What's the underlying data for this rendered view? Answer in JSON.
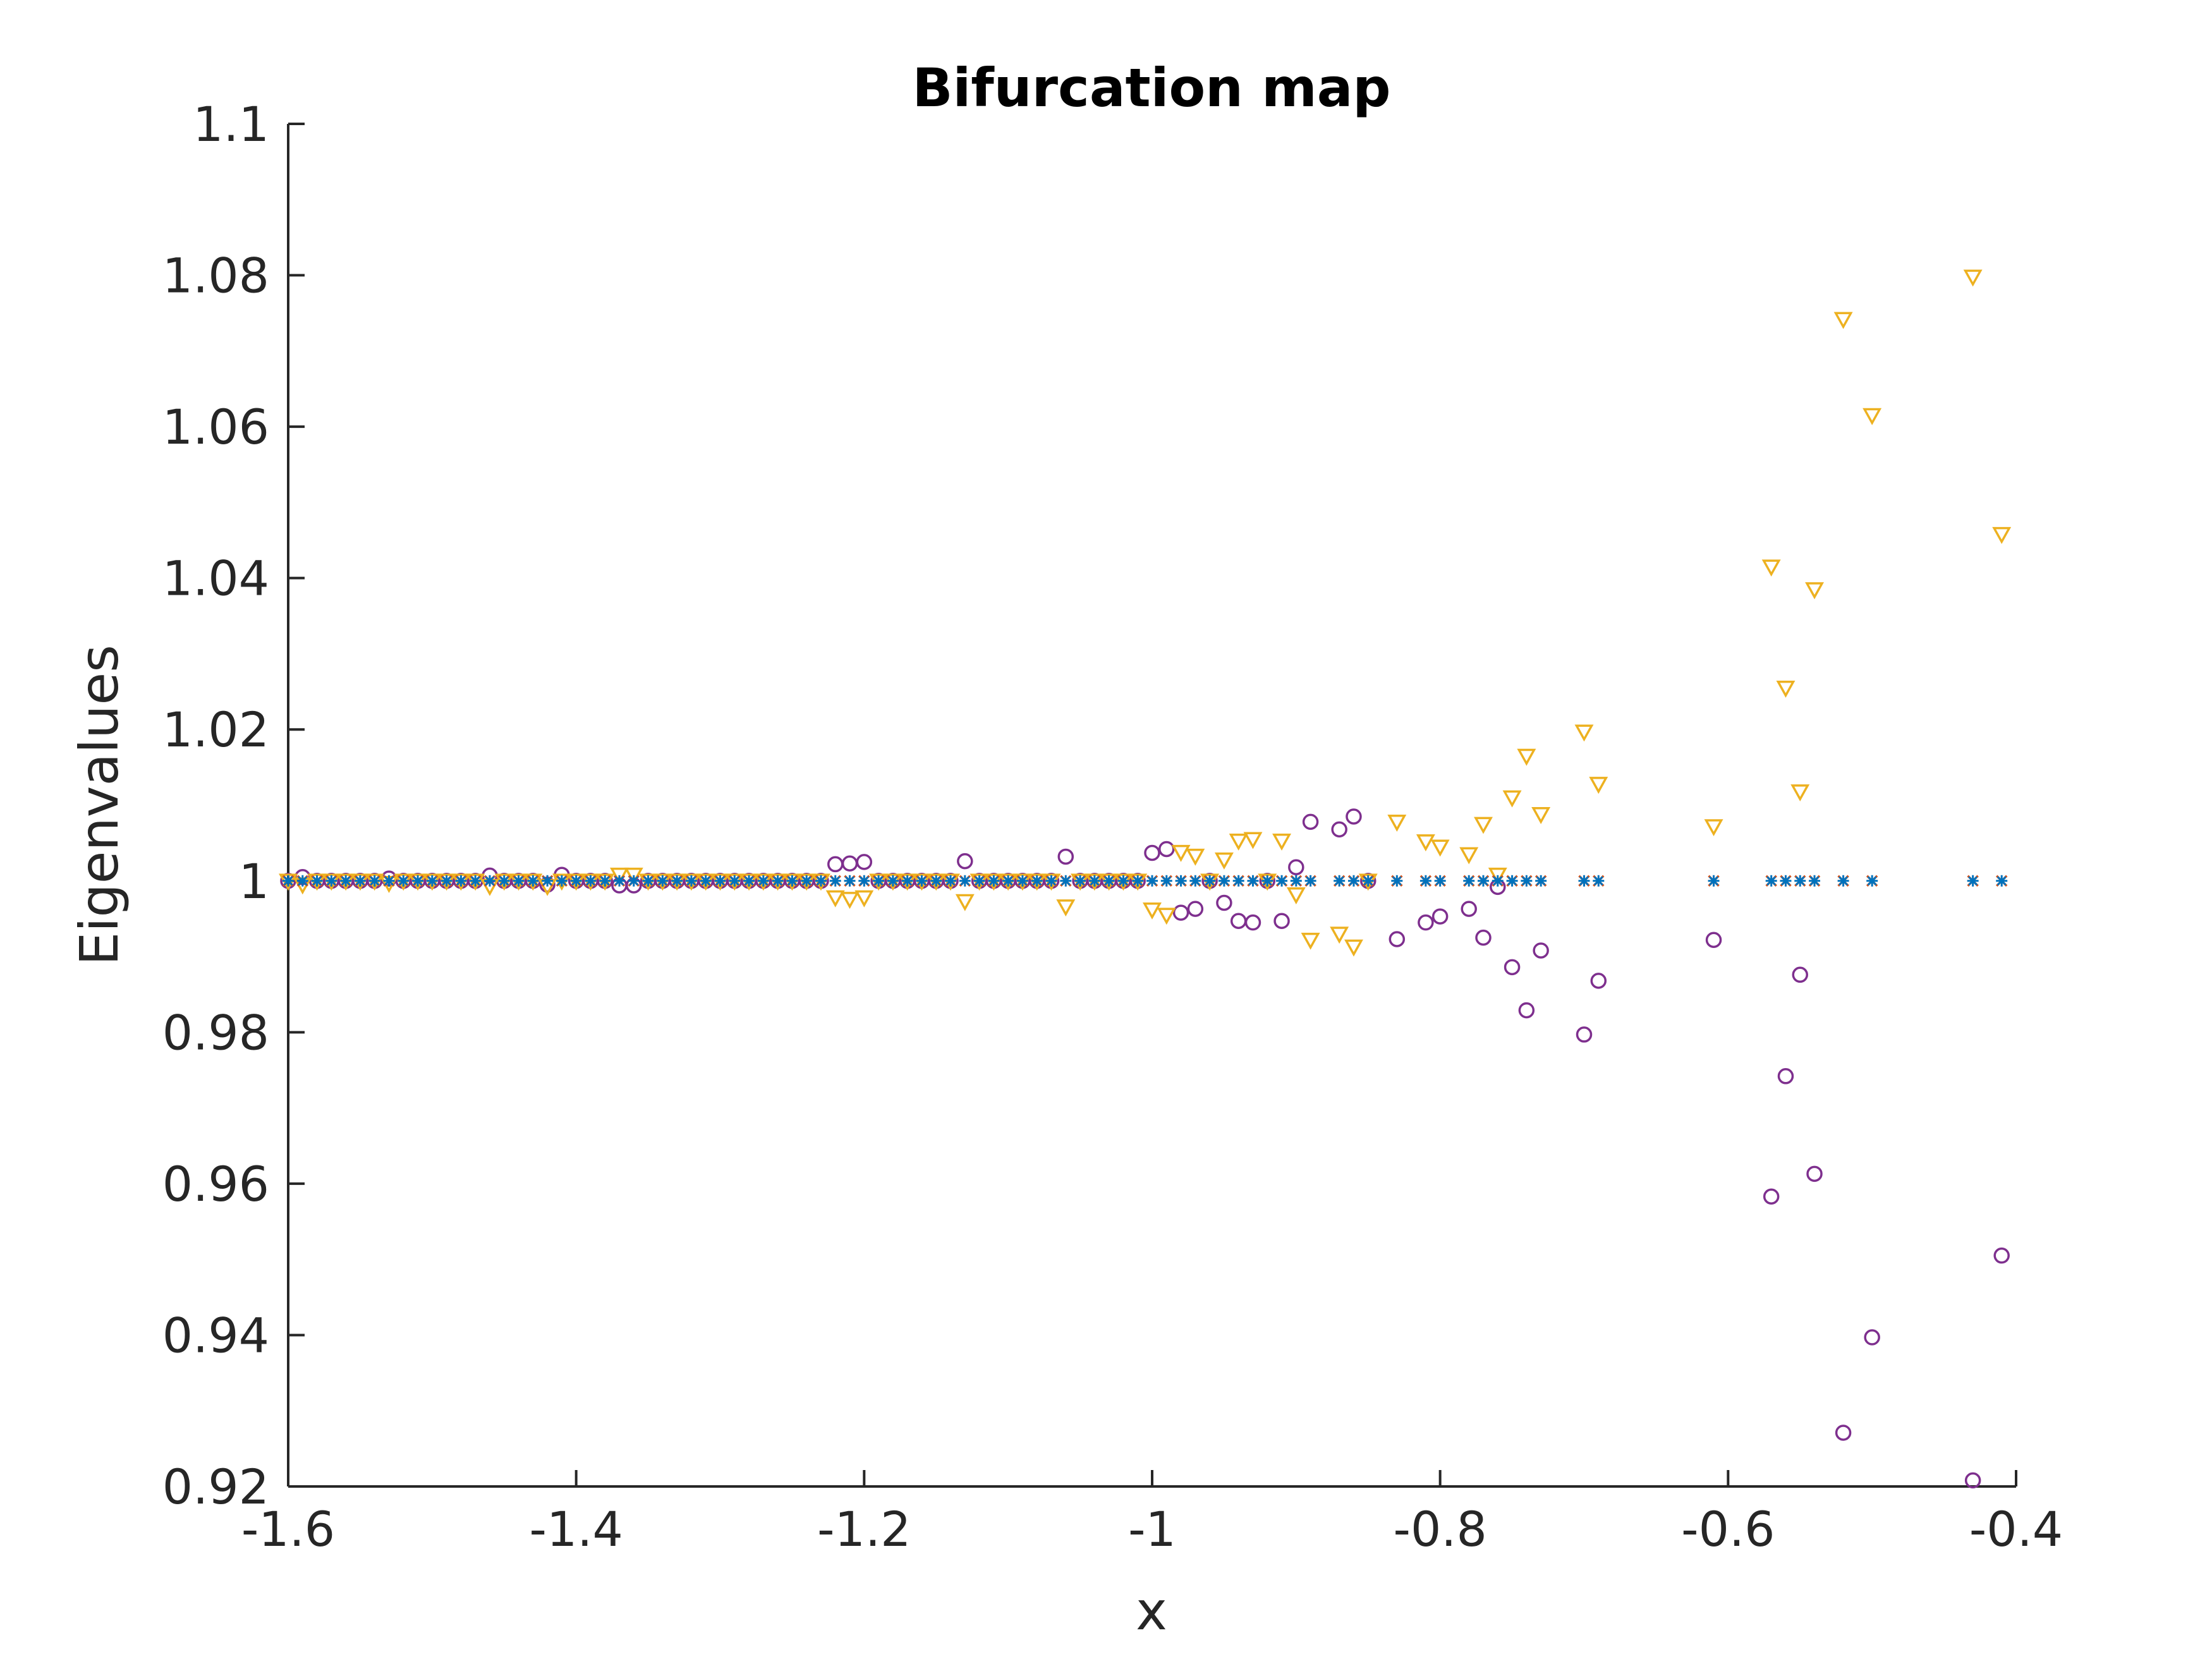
{
  "chart_data": {
    "type": "scatter",
    "title": "Bifurcation map",
    "xlabel": "x",
    "ylabel": "Eigenvalues",
    "xlim": [
      -1.6,
      -0.4
    ],
    "ylim": [
      0.92,
      1.1
    ],
    "xticks": [
      "-1.6",
      "-1.4",
      "-1.2",
      "-1",
      "-0.8",
      "-0.6",
      "-0.4"
    ],
    "yticks": [
      "0.92",
      "0.94",
      "0.96",
      "0.98",
      "1",
      "1.02",
      "1.04",
      "1.06",
      "1.08",
      "1.1"
    ],
    "grid": false,
    "legend": "none",
    "series": [
      {
        "marker": "asterisk",
        "color": "#0072BD",
        "x": [
          -1.6,
          -1.59,
          -1.58,
          -1.57,
          -1.56,
          -1.55,
          -1.54,
          -1.53,
          -1.52,
          -1.51,
          -1.5,
          -1.49,
          -1.48,
          -1.47,
          -1.46,
          -1.45,
          -1.44,
          -1.43,
          -1.42,
          -1.41,
          -1.4,
          -1.39,
          -1.38,
          -1.37,
          -1.36,
          -1.35,
          -1.34,
          -1.33,
          -1.32,
          -1.31,
          -1.3,
          -1.29,
          -1.28,
          -1.27,
          -1.26,
          -1.25,
          -1.24,
          -1.23,
          -1.22,
          -1.21,
          -1.2,
          -1.19,
          -1.18,
          -1.17,
          -1.16,
          -1.15,
          -1.14,
          -1.13,
          -1.12,
          -1.11,
          -1.1,
          -1.09,
          -1.08,
          -1.07,
          -1.06,
          -1.05,
          -1.04,
          -1.03,
          -1.02,
          -1.01,
          -1.0,
          -0.99,
          -0.98,
          -0.97,
          -0.96,
          -0.95,
          -0.94,
          -0.93,
          -0.92,
          -0.91,
          -0.9,
          -0.89,
          -0.87,
          -0.86,
          -0.85,
          -0.83,
          -0.81,
          -0.8,
          -0.78,
          -0.77,
          -0.76,
          -0.75,
          -0.74,
          -0.73,
          -0.7,
          -0.69,
          -0.61,
          -0.57,
          -0.56,
          -0.55,
          -0.54,
          -0.52,
          -0.5,
          -0.43,
          -0.41
        ],
        "y": [
          1.0,
          1.0,
          1.0,
          1.0,
          1.0,
          1.0,
          1.0,
          1.0,
          1.0,
          1.0,
          1.0,
          1.0,
          1.0,
          1.0,
          1.0,
          1.0,
          1.0,
          1.0,
          1.0,
          1.0,
          1.0,
          1.0,
          1.0,
          1.0,
          1.0,
          1.0,
          1.0,
          1.0,
          1.0,
          1.0,
          1.0,
          1.0,
          1.0,
          1.0,
          1.0,
          1.0,
          1.0,
          1.0,
          1.0,
          1.0,
          1.0,
          1.0,
          1.0,
          1.0,
          1.0,
          1.0,
          1.0,
          1.0,
          1.0,
          1.0,
          1.0,
          1.0,
          1.0,
          1.0,
          1.0,
          1.0,
          1.0,
          1.0,
          1.0,
          1.0,
          1.0,
          1.0,
          1.0,
          1.0,
          1.0,
          1.0,
          1.0,
          1.0,
          1.0,
          1.0,
          1.0,
          1.0,
          1.0,
          1.0,
          1.0,
          1.0,
          1.0,
          1.0,
          1.0,
          1.0,
          1.0,
          1.0,
          1.0,
          1.0,
          1.0,
          1.0,
          1.0,
          1.0,
          1.0,
          1.0,
          1.0,
          1.0,
          1.0,
          1.0,
          1.0
        ]
      },
      {
        "marker": "x",
        "color": "#D95319",
        "x": [
          -1.6,
          -1.59,
          -1.58,
          -1.57,
          -1.56,
          -1.55,
          -1.54,
          -1.53,
          -1.52,
          -1.51,
          -1.5,
          -1.49,
          -1.48,
          -1.47,
          -1.46,
          -1.45,
          -1.44,
          -1.43,
          -1.42,
          -1.41,
          -1.4,
          -1.39,
          -1.38,
          -1.37,
          -1.36,
          -1.35,
          -1.34,
          -1.33,
          -1.32,
          -1.31,
          -1.3,
          -1.29,
          -1.28,
          -1.27,
          -1.26,
          -1.25,
          -1.24,
          -1.23,
          -1.22,
          -1.21,
          -1.2,
          -1.19,
          -1.18,
          -1.17,
          -1.16,
          -1.15,
          -1.14,
          -1.13,
          -1.12,
          -1.11,
          -1.1,
          -1.09,
          -1.08,
          -1.07,
          -1.06,
          -1.05,
          -1.04,
          -1.03,
          -1.02,
          -1.01,
          -1.0,
          -0.99,
          -0.98,
          -0.97,
          -0.96,
          -0.95,
          -0.94,
          -0.93,
          -0.92,
          -0.91,
          -0.9,
          -0.89,
          -0.87,
          -0.86,
          -0.85,
          -0.83,
          -0.81,
          -0.8,
          -0.78,
          -0.77,
          -0.76,
          -0.75,
          -0.74,
          -0.73,
          -0.7,
          -0.69,
          -0.61,
          -0.57,
          -0.56,
          -0.55,
          -0.54,
          -0.52,
          -0.5,
          -0.43,
          -0.41
        ],
        "y": [
          1.0,
          1.0,
          1.0,
          1.0,
          1.0,
          1.0,
          1.0,
          1.0,
          1.0,
          1.0,
          1.0,
          1.0,
          1.0,
          1.0,
          1.0,
          1.0,
          1.0,
          1.0,
          1.0,
          1.0,
          1.0,
          1.0,
          1.0,
          1.0,
          1.0,
          1.0,
          1.0,
          1.0,
          1.0,
          1.0,
          1.0,
          1.0,
          1.0,
          1.0,
          1.0,
          1.0,
          1.0,
          1.0,
          1.0,
          1.0,
          1.0,
          1.0,
          1.0,
          1.0,
          1.0,
          1.0,
          1.0,
          1.0,
          1.0,
          1.0,
          1.0,
          1.0,
          1.0,
          1.0,
          1.0,
          1.0,
          1.0,
          1.0,
          1.0,
          1.0,
          1.0,
          1.0,
          1.0,
          1.0,
          1.0,
          1.0,
          1.0,
          1.0,
          1.0,
          1.0,
          1.0,
          1.0,
          1.0,
          1.0,
          1.0,
          1.0,
          1.0,
          1.0,
          1.0,
          1.0,
          1.0,
          1.0,
          1.0,
          1.0,
          1.0,
          1.0,
          1.0,
          1.0,
          1.0,
          1.0,
          1.0,
          1.0,
          1.0,
          1.0,
          1.0
        ]
      },
      {
        "marker": "triangle-down",
        "color": "#EDB120",
        "x": [
          -1.6,
          -1.59,
          -1.58,
          -1.57,
          -1.56,
          -1.55,
          -1.54,
          -1.53,
          -1.52,
          -1.51,
          -1.5,
          -1.49,
          -1.48,
          -1.47,
          -1.46,
          -1.45,
          -1.44,
          -1.43,
          -1.42,
          -1.41,
          -1.4,
          -1.39,
          -1.38,
          -1.37,
          -1.36,
          -1.35,
          -1.34,
          -1.33,
          -1.32,
          -1.31,
          -1.3,
          -1.29,
          -1.28,
          -1.27,
          -1.26,
          -1.25,
          -1.24,
          -1.23,
          -1.22,
          -1.21,
          -1.2,
          -1.19,
          -1.18,
          -1.17,
          -1.16,
          -1.15,
          -1.14,
          -1.13,
          -1.12,
          -1.11,
          -1.1,
          -1.09,
          -1.08,
          -1.07,
          -1.06,
          -1.05,
          -1.04,
          -1.03,
          -1.02,
          -1.01,
          -1.0,
          -0.99,
          -0.98,
          -0.97,
          -0.96,
          -0.95,
          -0.94,
          -0.93,
          -0.92,
          -0.91,
          -0.9,
          -0.89,
          -0.87,
          -0.86,
          -0.85,
          -0.83,
          -0.81,
          -0.8,
          -0.78,
          -0.77,
          -0.76,
          -0.75,
          -0.74,
          -0.73,
          -0.7,
          -0.69,
          -0.61,
          -0.57,
          -0.56,
          -0.55,
          -0.54,
          -0.52,
          -0.5,
          -0.43,
          -0.41
        ],
        "y": [
          1.0,
          0.9995,
          1.0,
          1.0,
          1.0,
          1.0,
          1.0,
          0.9997,
          1.0,
          1.0,
          1.0,
          1.0,
          1.0,
          1.0,
          0.9993,
          1.0,
          1.0,
          1.0,
          0.9993,
          1.0,
          1.0,
          1.0,
          1.0,
          1.0008,
          1.0008,
          1.0,
          1.0,
          1.0,
          1.0,
          1.0,
          1.0,
          1.0,
          1.0,
          1.0,
          1.0,
          1.0,
          1.0,
          1.0,
          0.9978,
          0.9976,
          0.9978,
          1.0,
          1.0,
          1.0,
          1.0,
          1.0,
          1.0,
          0.9973,
          1.0,
          1.0,
          1.0,
          1.0,
          1.0,
          1.0,
          0.9966,
          1.0,
          1.0,
          1.0,
          1.0,
          1.0,
          0.9962,
          0.9955,
          1.0038,
          1.0033,
          1.0,
          1.0028,
          1.0053,
          1.0055,
          1.0,
          1.0053,
          0.9982,
          0.9922,
          0.993,
          0.9913,
          1.0,
          1.0078,
          1.0052,
          1.0045,
          1.0035,
          1.0075,
          1.0008,
          1.011,
          1.0165,
          1.0088,
          1.0197,
          1.0128,
          1.0072,
          1.0415,
          1.0255,
          1.0118,
          1.0385,
          1.0742,
          1.0615,
          1.0798,
          1.0458
        ]
      },
      {
        "marker": "circle",
        "color": "#7E2F8E",
        "x": [
          -1.6,
          -1.59,
          -1.58,
          -1.57,
          -1.56,
          -1.55,
          -1.54,
          -1.53,
          -1.52,
          -1.51,
          -1.5,
          -1.49,
          -1.48,
          -1.47,
          -1.46,
          -1.45,
          -1.44,
          -1.43,
          -1.42,
          -1.41,
          -1.4,
          -1.39,
          -1.38,
          -1.37,
          -1.36,
          -1.35,
          -1.34,
          -1.33,
          -1.32,
          -1.31,
          -1.3,
          -1.29,
          -1.28,
          -1.27,
          -1.26,
          -1.25,
          -1.24,
          -1.23,
          -1.22,
          -1.21,
          -1.2,
          -1.19,
          -1.18,
          -1.17,
          -1.16,
          -1.15,
          -1.14,
          -1.13,
          -1.12,
          -1.11,
          -1.1,
          -1.09,
          -1.08,
          -1.07,
          -1.06,
          -1.05,
          -1.04,
          -1.03,
          -1.02,
          -1.01,
          -1.0,
          -0.99,
          -0.98,
          -0.97,
          -0.96,
          -0.95,
          -0.94,
          -0.93,
          -0.92,
          -0.91,
          -0.9,
          -0.89,
          -0.87,
          -0.86,
          -0.85,
          -0.83,
          -0.81,
          -0.8,
          -0.78,
          -0.77,
          -0.76,
          -0.75,
          -0.74,
          -0.73,
          -0.7,
          -0.69,
          -0.61,
          -0.57,
          -0.56,
          -0.55,
          -0.54,
          -0.52,
          -0.5,
          -0.43,
          -0.41
        ],
        "y": [
          1.0,
          1.0005,
          1.0,
          1.0,
          1.0,
          1.0,
          1.0,
          1.0003,
          1.0,
          1.0,
          1.0,
          1.0,
          1.0,
          1.0,
          1.0007,
          1.0,
          1.0,
          1.0,
          0.9995,
          1.0008,
          1.0,
          1.0,
          1.0,
          0.9994,
          0.9994,
          1.0,
          1.0,
          1.0,
          1.0,
          1.0,
          1.0,
          1.0,
          1.0,
          1.0,
          1.0,
          1.0,
          1.0,
          1.0,
          1.0022,
          1.0023,
          1.0025,
          1.0,
          1.0,
          1.0,
          1.0,
          1.0,
          1.0,
          1.0026,
          1.0,
          1.0,
          1.0,
          1.0,
          1.0,
          1.0,
          1.0032,
          1.0,
          1.0,
          1.0,
          1.0,
          1.0,
          1.0037,
          1.0042,
          0.9958,
          0.9963,
          1.0,
          0.9971,
          0.9947,
          0.9945,
          1.0,
          0.9947,
          1.0018,
          1.0078,
          1.0068,
          1.0085,
          1.0,
          0.9923,
          0.9945,
          0.9953,
          0.9963,
          0.9925,
          0.9992,
          0.9886,
          0.9829,
          0.9908,
          0.9797,
          0.9868,
          0.9922,
          0.9583,
          0.9742,
          0.9876,
          0.9613,
          0.9271,
          0.9397,
          0.9208,
          0.9505
        ]
      }
    ]
  }
}
